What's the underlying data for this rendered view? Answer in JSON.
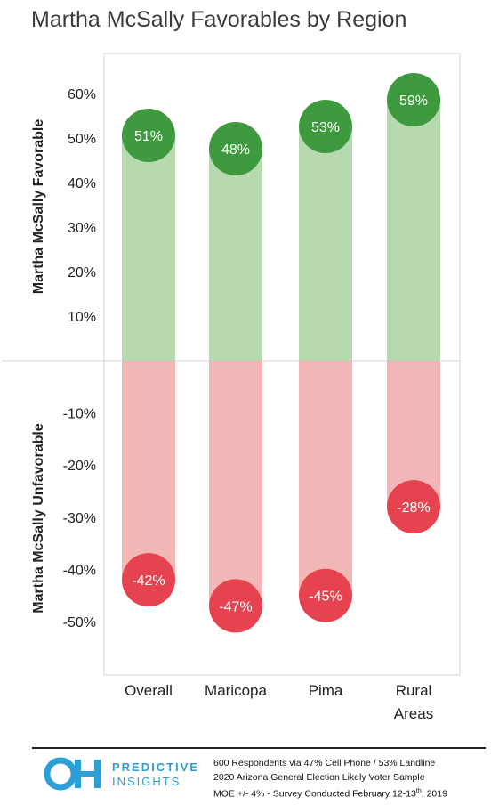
{
  "title": "Martha McSally Favorables by Region",
  "chart_data": {
    "type": "bar",
    "title": "Martha McSally Favorables by Region",
    "categories": [
      "Overall",
      "Maricopa",
      "Pima",
      "Rural Areas"
    ],
    "series": [
      {
        "name": "Martha McSally Favorable",
        "values": [
          51,
          48,
          53,
          59
        ],
        "color": "#b6d9af",
        "label_color": "#3f9a3f"
      },
      {
        "name": "Martha McSally Unfavorable",
        "values": [
          -42,
          -47,
          -45,
          -28
        ],
        "color": "#f2b6b7",
        "label_color": "#e5434f"
      }
    ],
    "data_labels_pos": [
      "51%",
      "48%",
      "53%",
      "59%"
    ],
    "data_labels_neg": [
      "-42%",
      "-47%",
      "-45%",
      "-28%"
    ],
    "ylabel_top": "Martha McSally Favorable",
    "ylabel_bottom": "Martha McSally Unfavorable",
    "ticks": [
      60,
      50,
      40,
      30,
      20,
      10,
      -10,
      -20,
      -30,
      -40,
      -50
    ],
    "tick_labels": [
      "60%",
      "50%",
      "40%",
      "30%",
      "20%",
      "10%",
      "-10%",
      "-20%",
      "-30%",
      "-40%",
      "-50%"
    ],
    "ylim": [
      -60,
      60
    ],
    "grid": false
  },
  "category_lines": [
    [
      "Overall"
    ],
    [
      "Maricopa"
    ],
    [
      "Pima"
    ],
    [
      "Rural",
      "Areas"
    ]
  ],
  "footer": {
    "logo_icon": "oh-logo-icon",
    "brand_line1": "PREDICTIVE",
    "brand_line2": "INSIGHTS",
    "note1": "600 Respondents via 47% Cell Phone / 53% Landline",
    "note2": "2020 Arizona General Election Likely Voter Sample",
    "note3_pre": "MOE +/- 4% - Survey Conducted February 12-13",
    "note3_sup": "th",
    "note3_post": ", 2019",
    "brand_color": "#2b9fd6"
  }
}
